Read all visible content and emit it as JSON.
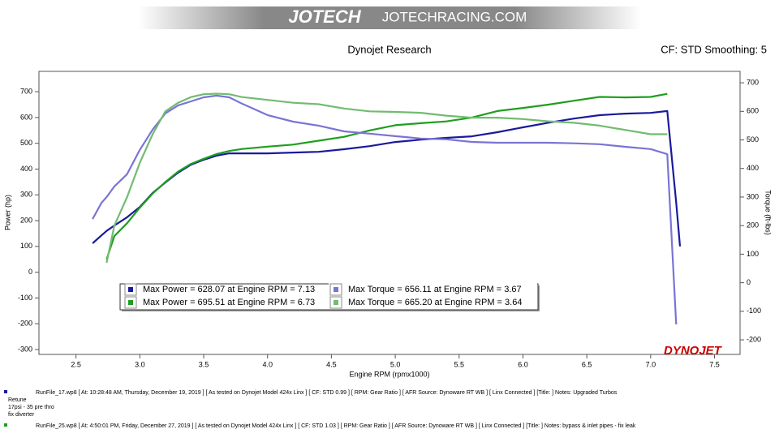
{
  "banner": {
    "brand": "JOTECH",
    "site": "JOTECHRACING.COM"
  },
  "chart_data": {
    "type": "line",
    "title": "Dynojet Research",
    "subtitle": "CF: STD Smoothing: 5",
    "x_label": "Engine RPM (rpmx1000)",
    "y_label": "Power (hp)",
    "y2_label": "Torque (ft-lbs)",
    "logo": "DYNOJET",
    "xlim": [
      2.21,
      7.7
    ],
    "xticks": [
      2.5,
      {
        "value": 3,
        "label": "3.0"
      },
      3.5,
      {
        "value": 4,
        "label": "4.0"
      },
      4.5,
      {
        "value": 5,
        "label": "5.0"
      },
      5.5,
      {
        "value": 6,
        "label": "6.0"
      },
      6.5,
      {
        "value": 7,
        "label": "7.0"
      },
      7.5
    ],
    "ylim": [
      -319,
      779
    ],
    "yticks": [
      -300,
      -200,
      -100,
      0,
      100,
      200,
      300,
      400,
      500,
      600,
      700
    ],
    "y2lim": [
      -251,
      740
    ],
    "y2ticks": [
      -200,
      -100,
      0,
      100,
      200,
      300,
      400,
      500,
      600,
      700
    ],
    "grid": false,
    "x": [
      2.63,
      2.7,
      2.74,
      2.8,
      2.9,
      3.0,
      3.1,
      3.2,
      3.3,
      3.4,
      3.5,
      3.6,
      3.7,
      3.8,
      4.0,
      4.2,
      4.4,
      4.6,
      4.8,
      5.0,
      5.2,
      5.4,
      5.6,
      5.8,
      6.0,
      6.2,
      6.4,
      6.6,
      6.8,
      7.0,
      7.13,
      7.2,
      7.23
    ],
    "series": [
      {
        "name": "Max Power = 628.07 at Engine RPM = 7.13",
        "color": "#1a1a9c",
        "axis": "y",
        "values": [
          112,
          143,
          160,
          181,
          213,
          253,
          307,
          348,
          386,
          417,
          436,
          452,
          461,
          461,
          461,
          464,
          467,
          477,
          489,
          505,
          514,
          521,
          527,
          543,
          562,
          580,
          596,
          609,
          615,
          618,
          625,
          270,
          100
        ]
      },
      {
        "name": "Max Power = 695.51 at Engine RPM = 6.73",
        "color": "#1f9e1f",
        "axis": "y",
        "values": [
          null,
          null,
          50,
          140,
          190,
          250,
          305,
          350,
          390,
          420,
          440,
          458,
          470,
          478,
          487,
          495,
          510,
          525,
          550,
          570,
          578,
          585,
          600,
          625,
          637,
          650,
          665,
          680,
          678,
          680,
          692,
          null,
          null
        ]
      },
      {
        "name": "Max Torque = 656.11 at Engine RPM = 3.67",
        "color": "#7a74d4",
        "axis": "y2",
        "values": [
          223,
          280,
          300,
          337,
          380,
          465,
          536,
          593,
          621,
          635,
          649,
          655,
          649,
          627,
          587,
          564,
          550,
          530,
          522,
          513,
          505,
          502,
          493,
          490,
          490,
          490,
          488,
          485,
          476,
          468,
          450,
          -146,
          null
        ]
      },
      {
        "name": "Max Torque = 665.20 at Engine RPM = 3.64",
        "color": "#72bb72",
        "axis": "y2",
        "values": [
          null,
          null,
          70,
          200,
          300,
          420,
          520,
          600,
          630,
          650,
          660,
          662,
          660,
          650,
          640,
          630,
          625,
          610,
          600,
          598,
          595,
          585,
          578,
          578,
          573,
          565,
          560,
          550,
          535,
          520,
          520,
          null,
          null
        ]
      }
    ]
  },
  "footer": {
    "run1": "RunFile_17.wp8 [ At: 10:28:48 AM, Thursday, December 19, 2019 ] [ As tested on Dynojet Model 424x Linx ] [ CF: STD 0.99 ] [ RPM: Gear Ratio ] [ AFR Source: Dynoware RT WB ] [ Linx Connected ] [Title: ]  Notes: Upgraded Turbos",
    "run1_notes": [
      "Retune",
      "17psi - 35 pre thro",
      "fix diverter"
    ],
    "run2": "RunFile_25.wp8 [ At: 4:50:01 PM, Friday, December 27, 2019 ] [ As tested on Dynojet Model 424x Linx ] [ CF: STD 1.03 ] [ RPM: Gear Ratio ] [ AFR Source: Dynoware RT WB ] [ Linx Connected ] [Title: ]  Notes: bypass & inlet pipes  - fix leak"
  }
}
